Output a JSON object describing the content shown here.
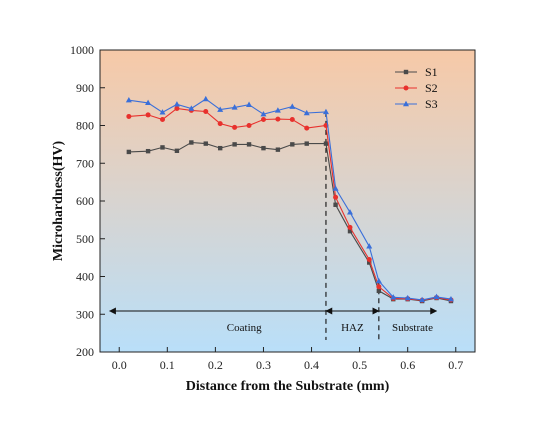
{
  "chart_data": {
    "type": "line",
    "xlabel": "Distance from the Substrate (mm)",
    "ylabel": "Microhardness(HV)",
    "xlim": [
      -0.04,
      0.74
    ],
    "ylim": [
      200,
      1000
    ],
    "xticks": [
      "0.0",
      "0.1",
      "0.2",
      "0.3",
      "0.4",
      "0.5",
      "0.6",
      "0.7"
    ],
    "yticks": [
      "200",
      "300",
      "400",
      "500",
      "600",
      "700",
      "800",
      "900",
      "1000"
    ],
    "background_gradient": [
      "#f7c9a7",
      "#b9dff9"
    ],
    "legend_position": "top-right",
    "series": [
      {
        "name": "S1",
        "color": "#4a4a4a",
        "marker": "square",
        "x": [
          0.02,
          0.06,
          0.09,
          0.12,
          0.15,
          0.18,
          0.21,
          0.24,
          0.27,
          0.3,
          0.33,
          0.36,
          0.39,
          0.43,
          0.45,
          0.48,
          0.52,
          0.54,
          0.57,
          0.6,
          0.63,
          0.66,
          0.69
        ],
        "values": [
          730,
          732,
          742,
          733,
          755,
          752,
          740,
          750,
          750,
          740,
          736,
          750,
          752,
          752,
          590,
          520,
          437,
          362,
          340,
          340,
          335,
          343,
          335
        ]
      },
      {
        "name": "S2",
        "color": "#e8312d",
        "marker": "circle",
        "x": [
          0.02,
          0.06,
          0.09,
          0.12,
          0.15,
          0.18,
          0.21,
          0.24,
          0.27,
          0.3,
          0.33,
          0.36,
          0.39,
          0.43,
          0.45,
          0.48,
          0.52,
          0.54,
          0.57,
          0.6,
          0.63,
          0.66,
          0.69
        ],
        "values": [
          824,
          828,
          816,
          845,
          840,
          837,
          805,
          795,
          800,
          816,
          817,
          816,
          793,
          800,
          610,
          530,
          445,
          373,
          342,
          341,
          337,
          344,
          338
        ]
      },
      {
        "name": "S3",
        "color": "#3a6fd9",
        "marker": "triangle",
        "x": [
          0.02,
          0.06,
          0.09,
          0.12,
          0.15,
          0.18,
          0.21,
          0.24,
          0.27,
          0.3,
          0.33,
          0.36,
          0.39,
          0.43,
          0.45,
          0.48,
          0.52,
          0.54,
          0.57,
          0.6,
          0.63,
          0.66,
          0.69
        ],
        "values": [
          867,
          860,
          835,
          856,
          845,
          870,
          842,
          848,
          855,
          830,
          840,
          850,
          833,
          836,
          633,
          570,
          480,
          388,
          345,
          343,
          338,
          346,
          340
        ]
      }
    ],
    "boundaries": [
      0.43,
      0.54
    ],
    "zones": [
      {
        "label": "Coating",
        "from": -0.02,
        "to": 0.43,
        "label_x": 0.26
      },
      {
        "label": "HAZ",
        "from": 0.43,
        "to": 0.54,
        "label_x": 0.485
      },
      {
        "label": "Substrate",
        "from": 0.54,
        "to": 0.66,
        "label_x": 0.61
      }
    ],
    "zone_arrow_y": 311
  }
}
